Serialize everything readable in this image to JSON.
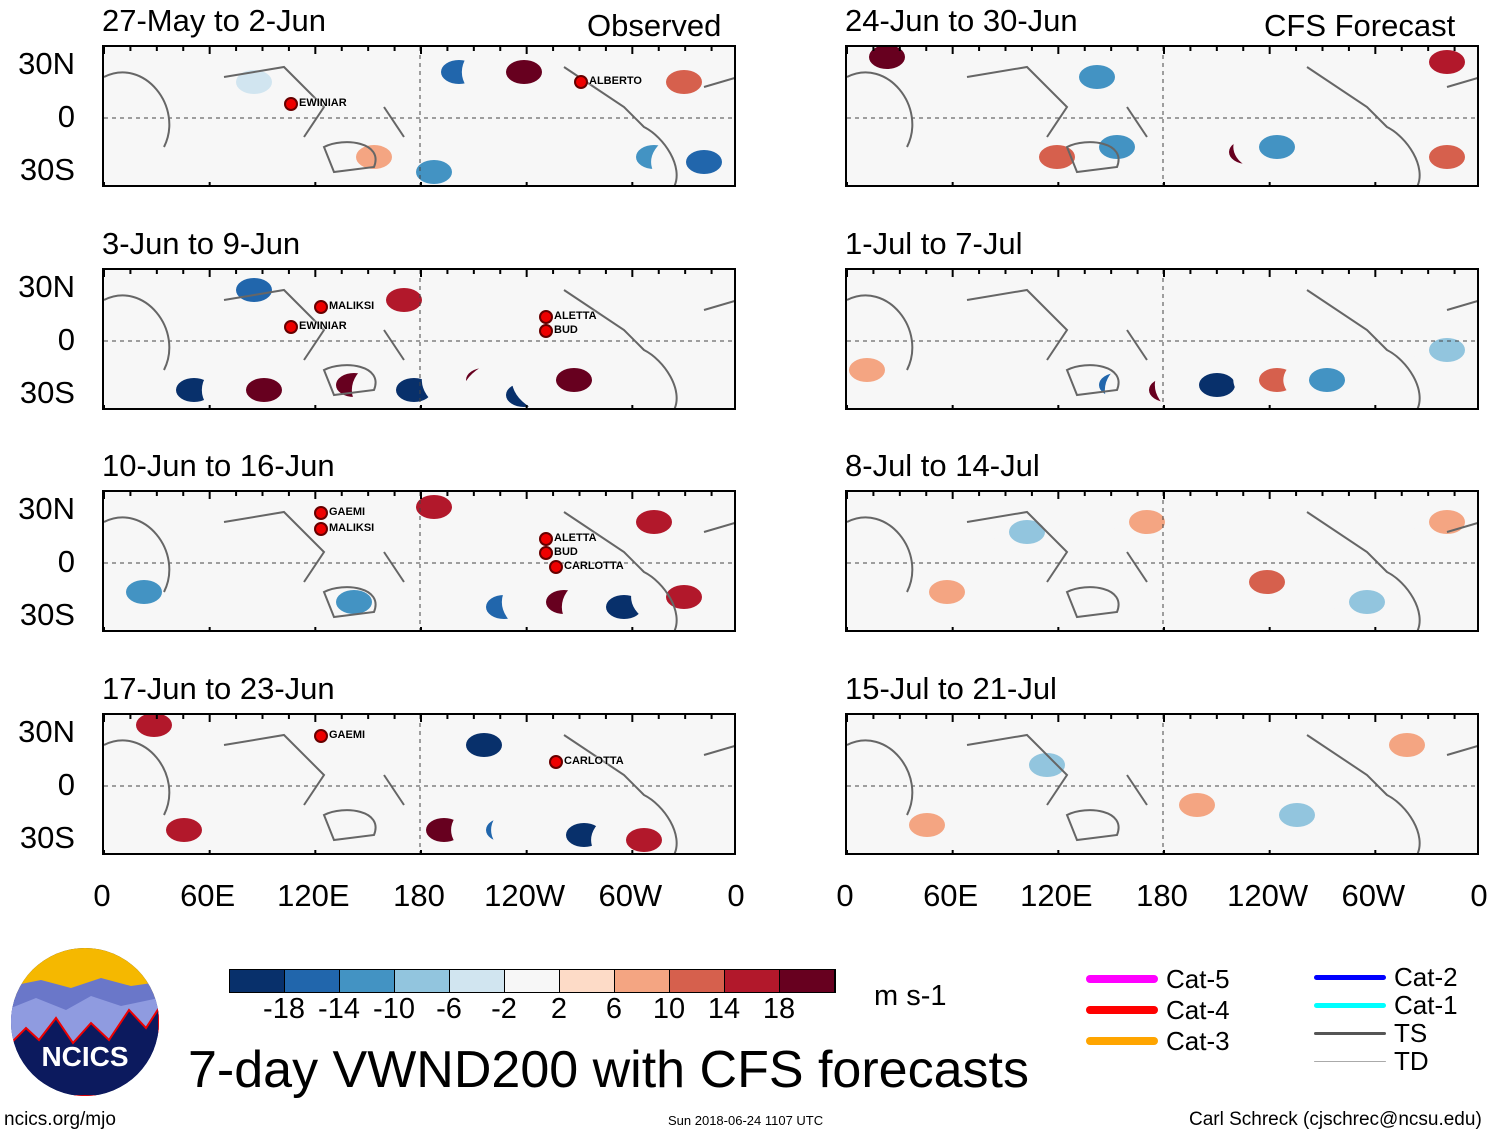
{
  "panels": {
    "observed_label": "Observed",
    "forecast_label": "CFS Forecast",
    "observed": [
      {
        "title": "27-May to 2-Jun",
        "storms": [
          "EWINIAR",
          "ALBERTO"
        ]
      },
      {
        "title": "3-Jun to 9-Jun",
        "storms": [
          "MALIKSI",
          "EWINIAR",
          "ALETTA",
          "BUD"
        ]
      },
      {
        "title": "10-Jun to 16-Jun",
        "storms": [
          "GAEMI",
          "MALIKSI",
          "ALETTA",
          "BUD",
          "CARLOTTA"
        ]
      },
      {
        "title": "17-Jun to 23-Jun",
        "storms": [
          "GAEMI",
          "CARLOTTA"
        ]
      }
    ],
    "forecast": [
      {
        "title": "24-Jun to 30-Jun"
      },
      {
        "title": "1-Jul to 7-Jul"
      },
      {
        "title": "8-Jul to 14-Jul"
      },
      {
        "title": "15-Jul to 21-Jul"
      }
    ]
  },
  "axes": {
    "lat_labels": [
      "30N",
      "0",
      "30S"
    ],
    "lon_labels": [
      "0",
      "60E",
      "120E",
      "180",
      "120W",
      "60W",
      "0"
    ]
  },
  "colorbar": {
    "colors": [
      "#08306b",
      "#2166ac",
      "#4393c3",
      "#92c5de",
      "#d1e5f0",
      "#f7f7f7",
      "#fddbc7",
      "#f4a582",
      "#d6604d",
      "#b2182b",
      "#67001f"
    ],
    "labels": [
      "-18",
      "-14",
      "-10",
      "-6",
      "-2",
      "2",
      "6",
      "10",
      "14",
      "18"
    ],
    "units": "m s-1"
  },
  "legend": [
    {
      "label": "Cat-5",
      "color": "#ff00ff"
    },
    {
      "label": "Cat-4",
      "color": "#ff0000"
    },
    {
      "label": "Cat-3",
      "color": "#ffa500"
    },
    {
      "label": "Cat-2",
      "color": "#0000ff"
    },
    {
      "label": "Cat-1",
      "color": "#00ffff"
    },
    {
      "label": "TS",
      "color": "#555555"
    },
    {
      "label": "TD",
      "color": "#aaaaaa"
    }
  ],
  "logo": "NCICS",
  "title": "7-day VWND200 with CFS forecasts",
  "footer": {
    "left": "ncics.org/mjo",
    "center": "Sun 2018-06-24 1107 UTC",
    "right": "Carl Schreck (cjschrec@ncsu.edu)"
  }
}
